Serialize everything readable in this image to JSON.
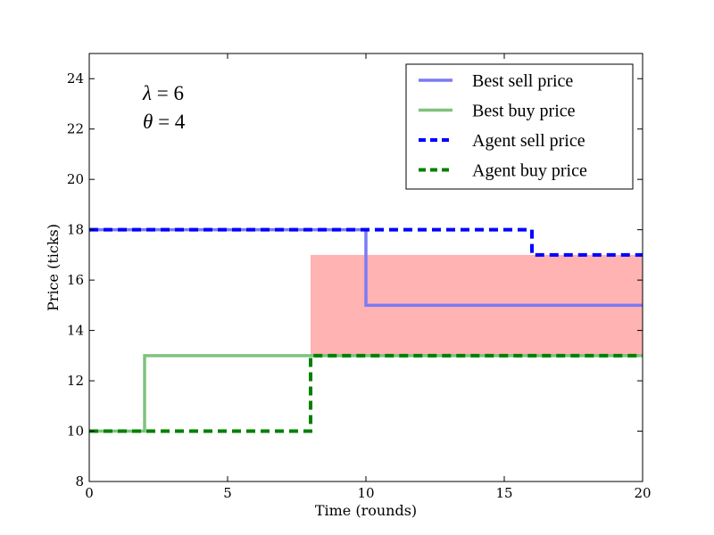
{
  "chart_data": {
    "type": "line",
    "title": "",
    "xlabel": "Time (rounds)",
    "ylabel": "Price (ticks)",
    "xlim": [
      0,
      20
    ],
    "ylim": [
      8,
      25
    ],
    "xticks": [
      0,
      5,
      10,
      15,
      20
    ],
    "yticks": [
      8,
      10,
      12,
      14,
      16,
      18,
      20,
      22,
      24
    ],
    "grid": false,
    "legend_position": "top-right",
    "annotations": [
      {
        "symbol": "λ",
        "text": "= 6"
      },
      {
        "symbol": "θ",
        "text": "= 4"
      }
    ],
    "shaded_region": {
      "x": [
        8,
        20
      ],
      "y": [
        13,
        17
      ],
      "color": "#ffb3b3"
    },
    "series": [
      {
        "name": "Best sell price",
        "style": "solid",
        "color": "#7b7bf5",
        "x": [
          0,
          10,
          10,
          20
        ],
        "y": [
          18,
          18,
          15,
          15
        ]
      },
      {
        "name": "Best buy price",
        "style": "solid",
        "color": "#7fc27f",
        "x": [
          0,
          2,
          2,
          20
        ],
        "y": [
          10,
          10,
          13,
          13
        ]
      },
      {
        "name": "Agent sell price",
        "style": "dashed",
        "color": "#0000ff",
        "x": [
          0,
          16,
          16,
          20
        ],
        "y": [
          18,
          18,
          17,
          17
        ]
      },
      {
        "name": "Agent buy price",
        "style": "dashed",
        "color": "#008000",
        "x": [
          0,
          8,
          8,
          20
        ],
        "y": [
          10,
          10,
          13,
          13
        ]
      }
    ]
  }
}
